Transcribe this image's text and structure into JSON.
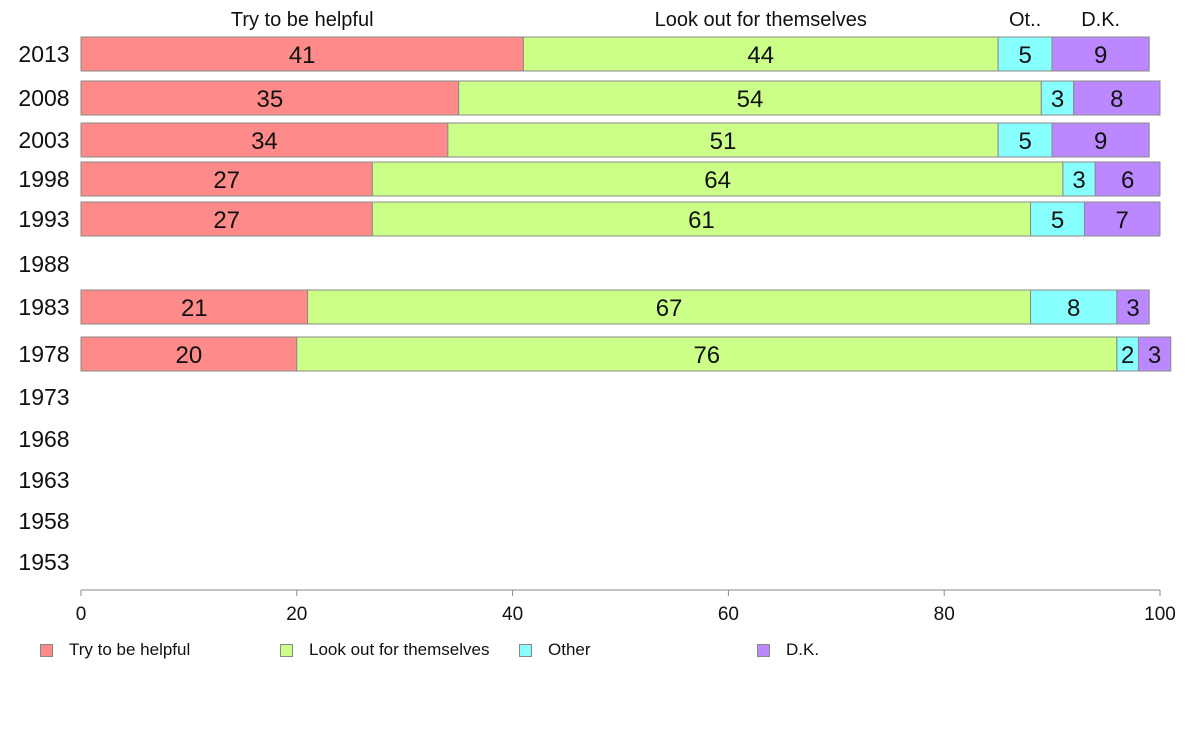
{
  "chart_data": {
    "type": "bar",
    "orientation": "horizontal",
    "stacked": true,
    "categories": [
      "2013",
      "2008",
      "2003",
      "1998",
      "1993",
      "1988",
      "1983",
      "1978",
      "1973",
      "1968",
      "1963",
      "1958",
      "1953"
    ],
    "series": [
      {
        "name": "Try to be helpful",
        "color": "#ff8a8a",
        "values": [
          41,
          35,
          34,
          27,
          27,
          null,
          21,
          20,
          null,
          null,
          null,
          null,
          null
        ]
      },
      {
        "name": "Look out for themselves",
        "color": "#ccff88",
        "values": [
          44,
          54,
          51,
          64,
          61,
          null,
          67,
          76,
          null,
          null,
          null,
          null,
          null
        ]
      },
      {
        "name": "Other",
        "color": "#88ffff",
        "values": [
          5,
          3,
          5,
          3,
          5,
          null,
          8,
          2,
          null,
          null,
          null,
          null,
          null
        ]
      },
      {
        "name": "D.K.",
        "color": "#bb88ff",
        "values": [
          9,
          8,
          9,
          6,
          7,
          null,
          3,
          3,
          null,
          null,
          null,
          null,
          null
        ]
      }
    ],
    "top_labels": [
      "Try to be helpful",
      "Look out for themselves",
      "Ot..",
      "D.K."
    ],
    "xlim": [
      0,
      100
    ],
    "x_ticks": [
      "0",
      "20",
      "40",
      "60",
      "80",
      "100"
    ],
    "xlabel": "",
    "ylabel": "",
    "grid": false,
    "legend_position": "bottom"
  }
}
